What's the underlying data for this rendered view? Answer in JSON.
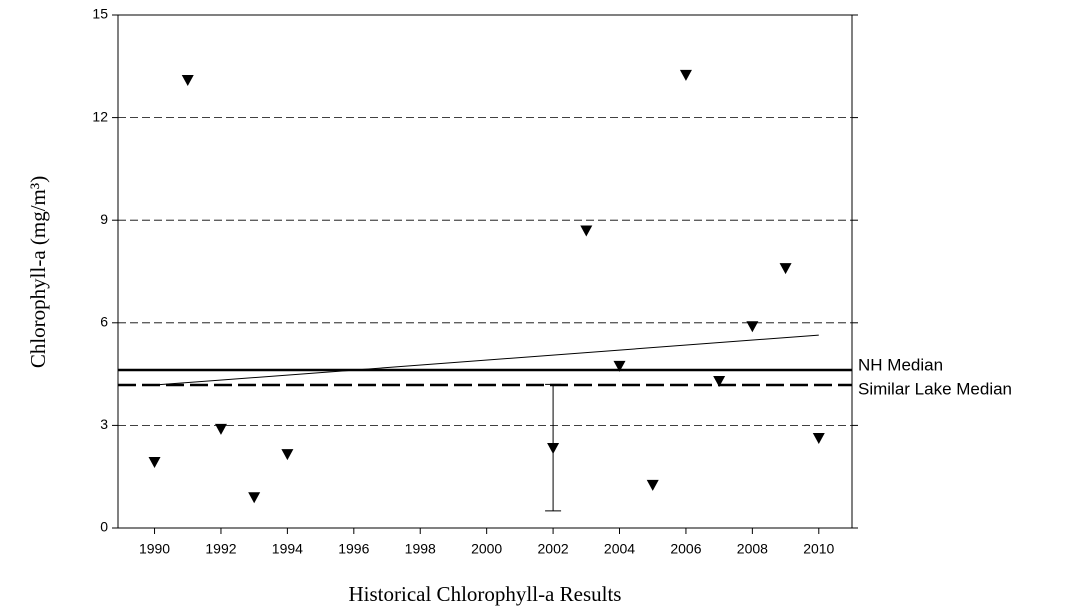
{
  "chart_data": {
    "type": "scatter",
    "x_label": "Historical Chlorophyll-a Results",
    "y_label": "Chlorophyll-a (mg/m³)",
    "x": [
      1990,
      1991,
      1992,
      1993,
      1994,
      2002,
      2003,
      2004,
      2005,
      2006,
      2007,
      2008,
      2009,
      2010
    ],
    "values": [
      1.93,
      13.1,
      2.9,
      0.9,
      2.16,
      2.34,
      8.7,
      4.74,
      1.26,
      13.25,
      4.3,
      5.9,
      7.6,
      2.63
    ],
    "color": "#000000",
    "error_bar": {
      "x": 2002,
      "low": 0.5,
      "high": 4.2
    },
    "trend": {
      "x": [
        1990,
        2010
      ],
      "values": [
        4.18,
        5.64
      ]
    },
    "reference_lines": [
      {
        "name": "NH Median",
        "value": 4.62,
        "style": "solid"
      },
      {
        "name": "Similar Lake Median",
        "value": 4.18,
        "style": "dashed"
      }
    ],
    "xlim": [
      1988.9,
      2011
    ],
    "ylim": [
      0,
      15
    ],
    "xticks": [
      1990,
      1992,
      1994,
      1996,
      1998,
      2000,
      2002,
      2004,
      2006,
      2008,
      2010
    ],
    "yticks": [
      0,
      3,
      6,
      9,
      12,
      15
    ],
    "grid": true
  }
}
